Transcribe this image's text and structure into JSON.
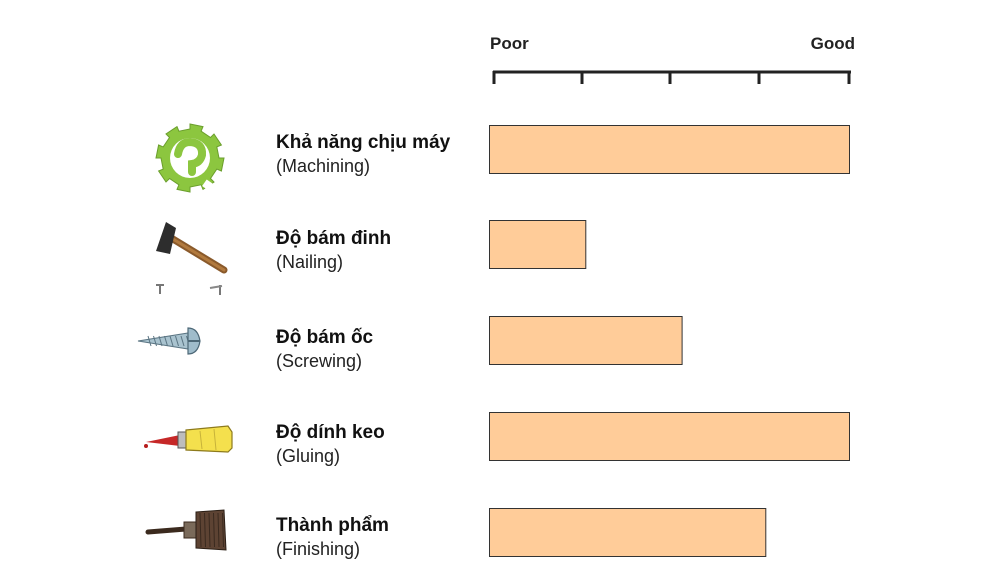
{
  "chart_data": {
    "type": "bar",
    "orientation": "horizontal",
    "scale": {
      "min_label": "Poor",
      "max_label": "Good",
      "range": [
        0,
        4
      ],
      "ticks": [
        0,
        1,
        2,
        3,
        4
      ]
    },
    "categories": [
      {
        "title": "Khả năng chịu máy",
        "subtitle": "(Machining)",
        "icon": "gear-icon",
        "value": 4
      },
      {
        "title": "Độ bám đinh",
        "subtitle": "(Nailing)",
        "icon": "hammer-icon",
        "value": 1.07
      },
      {
        "title": "Độ bám ốc",
        "subtitle": "(Screwing)",
        "icon": "screw-icon",
        "value": 2.14
      },
      {
        "title": "Độ dính keo",
        "subtitle": "(Gluing)",
        "icon": "glue-tube-icon",
        "value": 4
      },
      {
        "title": "Thành phẩm",
        "subtitle": "(Finishing)",
        "icon": "paintbrush-icon",
        "value": 3.07
      }
    ],
    "colors": {
      "bar_fill": "#ffcc99",
      "bar_stroke": "#333333",
      "axis": "#222222",
      "gear": "#8cc63f"
    }
  }
}
